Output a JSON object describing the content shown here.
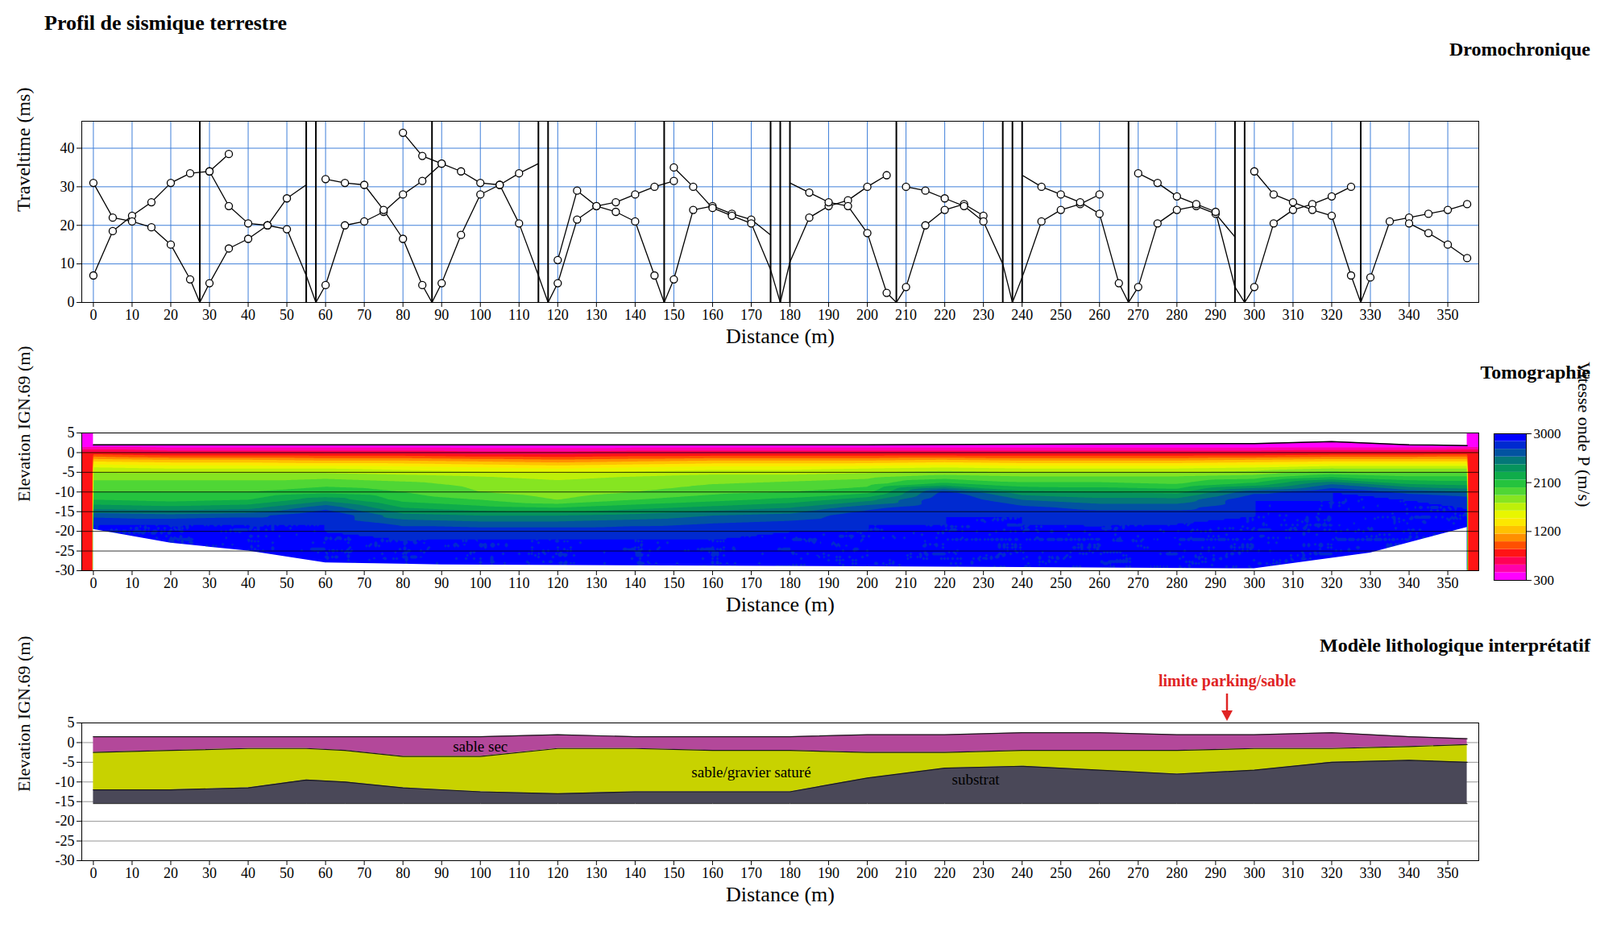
{
  "title": "Profil de sismique terrestre",
  "chart_data": [
    {
      "type": "line",
      "title": "Dromochronique",
      "x_label": "Distance (m)",
      "y_label": "Traveltime (ms)",
      "xlim": [
        -3,
        358
      ],
      "ylim": [
        0,
        47
      ],
      "xticks": [
        0,
        10,
        20,
        30,
        40,
        50,
        60,
        70,
        80,
        90,
        100,
        110,
        120,
        130,
        140,
        150,
        160,
        170,
        180,
        190,
        200,
        210,
        220,
        230,
        240,
        250,
        260,
        270,
        280,
        290,
        300,
        310,
        320,
        330,
        340,
        350
      ],
      "yticks": [
        0,
        10,
        20,
        30,
        40
      ],
      "grid": true,
      "marker": "circle",
      "color": "#000000",
      "sources": [
        27.5,
        55,
        57.5,
        87.5,
        115,
        117.5,
        147.5,
        175,
        177.5,
        180,
        207.5,
        235,
        237.5,
        240,
        267.5,
        295,
        297.5,
        327.5
      ],
      "series": [
        {
          "x": [
            0,
            5,
            10,
            15,
            20,
            25,
            30,
            35
          ],
          "values": [
            7,
            18.5,
            22.5,
            26,
            31,
            33.5,
            34,
            38.5
          ]
        },
        {
          "x": [
            0,
            5,
            10,
            15,
            20,
            25,
            27.5,
            30,
            35,
            40,
            45,
            50,
            55
          ],
          "values": [
            31,
            22,
            21,
            19.5,
            15,
            6,
            0,
            5,
            14,
            16.5,
            20,
            27,
            30.5
          ]
        },
        {
          "x": [
            30,
            35,
            40,
            45,
            50,
            55,
            57.5,
            60,
            65,
            70,
            75,
            80,
            85,
            90
          ],
          "values": [
            34,
            25,
            20.5,
            20,
            19,
            7,
            0,
            4.5,
            20,
            21,
            23.5,
            28,
            31.5,
            36
          ]
        },
        {
          "x": [
            60,
            65,
            70,
            75,
            80,
            85,
            87.5,
            90,
            95,
            100,
            105,
            110,
            115
          ],
          "values": [
            32,
            31,
            30.5,
            24,
            16.5,
            4.5,
            0,
            5,
            17.5,
            28,
            30.5,
            33.5,
            36
          ]
        },
        {
          "x": [
            80,
            85,
            90,
            95,
            100,
            105,
            110,
            115,
            117.5,
            120,
            125,
            130,
            135,
            140,
            145,
            150
          ],
          "values": [
            44,
            38,
            36,
            34,
            31,
            30.5,
            20.5,
            7,
            0,
            5,
            21.5,
            25,
            26,
            28,
            30,
            31.5
          ]
        },
        {
          "x": [
            120,
            125,
            130,
            135,
            140,
            145,
            147.5,
            150,
            155,
            160,
            165,
            170,
            175
          ],
          "values": [
            11,
            29,
            25,
            23.5,
            21,
            7,
            0,
            6,
            24,
            25,
            23,
            21.5,
            17.5
          ]
        },
        {
          "x": [
            150,
            155,
            160,
            165,
            170,
            175,
            177.5,
            180,
            185,
            190,
            195,
            200,
            205
          ],
          "values": [
            35,
            30,
            24.5,
            22.5,
            20.5,
            8.5,
            0,
            10.5,
            22,
            25,
            26.5,
            30,
            33
          ]
        },
        {
          "x": [
            180,
            185,
            190,
            195,
            200,
            205,
            207.5,
            210,
            215,
            220,
            225,
            230
          ],
          "values": [
            31,
            28.5,
            26,
            25,
            18,
            2.5,
            0,
            4,
            20,
            24,
            25.5,
            22.5
          ]
        },
        {
          "x": [
            210,
            215,
            220,
            225,
            230,
            235,
            237.5,
            240,
            245,
            250,
            255,
            260
          ],
          "values": [
            30,
            29,
            27,
            25,
            21,
            10,
            0,
            6.5,
            21,
            24,
            25.5,
            28
          ]
        },
        {
          "x": [
            240,
            245,
            250,
            255,
            260,
            265,
            267.5,
            270,
            275,
            280,
            285,
            290,
            295
          ],
          "values": [
            33,
            30,
            28,
            26,
            23,
            5,
            0,
            4,
            20.5,
            24,
            25,
            23,
            17
          ]
        },
        {
          "x": [
            270,
            275,
            280,
            285,
            290,
            295,
            297.5,
            300,
            305,
            310,
            315,
            320,
            325
          ],
          "values": [
            33.5,
            31,
            27.5,
            25.5,
            23.5,
            4,
            0,
            4,
            20.5,
            24,
            25.5,
            27.5,
            30
          ]
        },
        {
          "x": [
            300,
            305,
            310,
            315,
            320,
            325,
            327.5,
            330,
            335,
            340,
            345,
            350,
            355
          ],
          "values": [
            34,
            28,
            26,
            24,
            22.5,
            7,
            0,
            6.5,
            21,
            22,
            23,
            24,
            25.5
          ]
        },
        {
          "x": [
            340,
            345,
            350,
            355
          ],
          "values": [
            20.5,
            18,
            15,
            11.5
          ]
        }
      ]
    },
    {
      "type": "contour",
      "title": "Tomographie",
      "x_label": "Distance (m)",
      "y_label": "Elevation IGN.69 (m)",
      "xlim": [
        -3,
        358
      ],
      "ylim": [
        -30,
        5
      ],
      "xticks": [
        0,
        10,
        20,
        30,
        40,
        50,
        60,
        70,
        80,
        90,
        100,
        110,
        120,
        130,
        140,
        150,
        160,
        170,
        180,
        190,
        200,
        210,
        220,
        230,
        240,
        250,
        260,
        270,
        280,
        290,
        300,
        310,
        320,
        330,
        340,
        350
      ],
      "yticks": [
        5,
        0,
        -5,
        -10,
        -15,
        -20,
        -25,
        -30
      ],
      "grid": true,
      "x": [
        0,
        20,
        40,
        60,
        80,
        100,
        120,
        140,
        160,
        180,
        200,
        220,
        240,
        260,
        280,
        300,
        320,
        340,
        355
      ],
      "elevation": [
        2,
        0,
        -2,
        -4,
        -6,
        -8,
        -10,
        -12,
        -14,
        -16,
        -18,
        -20,
        -22,
        -25,
        -30
      ],
      "velocity": [
        [
          300,
          800,
          1300,
          1700,
          1900,
          2000,
          2100,
          2250,
          2500,
          2800,
          3000,
          3000,
          3000,
          3000,
          3000
        ],
        [
          300,
          700,
          1250,
          1650,
          1900,
          2000,
          2100,
          2200,
          2450,
          2750,
          3000,
          3000,
          3000,
          3000,
          3000
        ],
        [
          300,
          700,
          1250,
          1650,
          1900,
          2000,
          2100,
          2250,
          2500,
          2800,
          3000,
          3000,
          3000,
          3000,
          3000
        ],
        [
          300,
          700,
          1200,
          1650,
          1900,
          2050,
          2200,
          2500,
          2800,
          3000,
          3000,
          3000,
          3000,
          3000,
          3000
        ],
        [
          300,
          700,
          1200,
          1600,
          1850,
          2000,
          2100,
          2200,
          2400,
          2600,
          2800,
          2950,
          3000,
          3000,
          3000
        ],
        [
          300,
          650,
          1150,
          1550,
          1800,
          1900,
          1950,
          2100,
          2300,
          2550,
          2750,
          2950,
          3000,
          3000,
          3000
        ],
        [
          300,
          650,
          1100,
          1500,
          1750,
          1850,
          1850,
          1950,
          2250,
          2550,
          2750,
          2950,
          3000,
          3000,
          3000
        ],
        [
          300,
          700,
          1150,
          1550,
          1800,
          1900,
          1950,
          2100,
          2350,
          2600,
          2800,
          2950,
          3000,
          3000,
          3000
        ],
        [
          300,
          700,
          1200,
          1600,
          1850,
          1950,
          2050,
          2200,
          2450,
          2700,
          2850,
          2950,
          3000,
          3000,
          3000
        ],
        [
          300,
          700,
          1200,
          1600,
          1850,
          2000,
          2100,
          2300,
          2550,
          2750,
          2900,
          3000,
          3000,
          3000,
          3000
        ],
        [
          300,
          700,
          1200,
          1650,
          1900,
          2050,
          2200,
          2500,
          2800,
          2950,
          3000,
          3000,
          3000,
          3000,
          3000
        ],
        [
          300,
          700,
          1250,
          1700,
          2000,
          2300,
          2900,
          3000,
          3000,
          3000,
          3000,
          3000,
          3000,
          3000,
          3000
        ],
        [
          300,
          700,
          1200,
          1650,
          1950,
          2150,
          2450,
          2700,
          2900,
          3000,
          3000,
          3000,
          3000,
          3000,
          3000
        ],
        [
          300,
          700,
          1200,
          1650,
          1950,
          2150,
          2400,
          2600,
          2800,
          2950,
          3000,
          3000,
          3000,
          3000,
          3000
        ],
        [
          300,
          700,
          1200,
          1650,
          1950,
          2100,
          2350,
          2600,
          2800,
          2950,
          3000,
          3000,
          3000,
          3000,
          3000
        ],
        [
          300,
          700,
          1250,
          1700,
          2000,
          2300,
          2800,
          3000,
          3000,
          3000,
          3000,
          3000,
          3000,
          3000,
          3000
        ],
        [
          300,
          750,
          1300,
          1800,
          2200,
          2700,
          3000,
          3000,
          3000,
          3000,
          3000,
          3000,
          3000,
          3000,
          3000
        ],
        [
          300,
          750,
          1300,
          1800,
          2100,
          2400,
          2800,
          3000,
          3000,
          3000,
          3000,
          3000,
          3000,
          3000,
          3000
        ],
        [
          300,
          800,
          1300,
          1800,
          2100,
          2350,
          2700,
          2950,
          3000,
          3000,
          3000,
          3000,
          3000,
          3000,
          3000
        ]
      ],
      "surface": {
        "x": [
          0,
          100,
          200,
          300,
          320,
          340,
          355
        ],
        "values": [
          2,
          2,
          2,
          2.3,
          2.8,
          2,
          1.8
        ]
      },
      "bottom": {
        "x": [
          0,
          20,
          40,
          60,
          90,
          200,
          300,
          330,
          355
        ],
        "values": [
          -19.5,
          -23,
          -25,
          -28,
          -28.5,
          -29,
          -29.5,
          -25.5,
          -19
        ]
      },
      "colorbar": {
        "label": "Vitesse onde P (m/s)",
        "lim": [
          300,
          3000
        ],
        "ticks": [
          300,
          1200,
          2100,
          3000
        ]
      }
    },
    {
      "type": "area",
      "title": "Modèle lithologique interprétatif",
      "x_label": "Distance (m)",
      "y_label": "Elevation IGN.69 (m)",
      "xlim": [
        -3,
        358
      ],
      "ylim": [
        -30,
        5
      ],
      "xticks": [
        0,
        10,
        20,
        30,
        40,
        50,
        60,
        70,
        80,
        90,
        100,
        110,
        120,
        130,
        140,
        150,
        160,
        170,
        180,
        190,
        200,
        210,
        220,
        230,
        240,
        250,
        260,
        270,
        280,
        290,
        300,
        310,
        320,
        330,
        340,
        350
      ],
      "yticks": [
        5,
        0,
        -5,
        -10,
        -15,
        -20,
        -25,
        -30
      ],
      "grid": true,
      "x": [
        0,
        20,
        40,
        55,
        65,
        80,
        100,
        120,
        140,
        160,
        180,
        200,
        220,
        240,
        260,
        280,
        300,
        320,
        340,
        355
      ],
      "layers": [
        {
          "name": "sable sec",
          "color": "#b3489a",
          "label_at": [
            100,
            -1
          ],
          "top": [
            1.5,
            1.5,
            1.5,
            1.5,
            1.5,
            1.5,
            1.5,
            2,
            1.5,
            1.5,
            1.5,
            2,
            2,
            2.5,
            2.5,
            2,
            2,
            2.5,
            1.5,
            1
          ]
        },
        {
          "name": "sable/gravier saturé",
          "color": "#c8d200",
          "label_at": [
            170,
            -7.5
          ],
          "top": [
            -2.5,
            -2,
            -1.5,
            -1.5,
            -2,
            -3.5,
            -3.5,
            -1.5,
            -1.5,
            -2,
            -2,
            -2.5,
            -2.5,
            -2,
            -2,
            -2,
            -1.5,
            -1.5,
            -1,
            -0.5
          ]
        },
        {
          "name": "substrat",
          "color": "#4a4858",
          "label_at": [
            228,
            -9.5
          ],
          "top": [
            -12,
            -12,
            -11.5,
            -9.5,
            -10,
            -11.5,
            -12.5,
            -13,
            -12.5,
            -12.5,
            -12.5,
            -9,
            -6.5,
            -6,
            -7,
            -8,
            -7,
            -5,
            -4.5,
            -5
          ]
        }
      ],
      "base": [
        -15.5,
        -15.5,
        -15.5,
        -15.5,
        -15.5,
        -15.5,
        -15.5,
        -15.5,
        -15.5,
        -15.5,
        -15.5,
        -15.5,
        -15.5,
        -15.5,
        -15.5,
        -15.5,
        -15.5,
        -15.5,
        -15.5,
        -15.5
      ],
      "annotations": [
        {
          "text": "limite parking/sable",
          "x": 293,
          "color": "#e02424"
        }
      ]
    }
  ]
}
